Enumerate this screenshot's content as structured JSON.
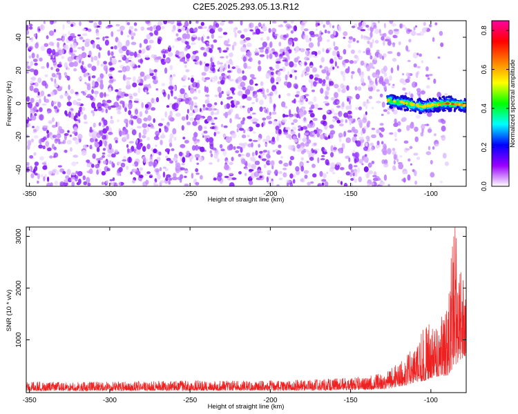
{
  "title": "C2E5.2025.293.05.13.R12",
  "chart_data": [
    {
      "type": "heatmap",
      "name": "spectrogram",
      "xlabel": "Height of straight line (km)",
      "ylabel": "Frequency (Hz)",
      "xlim": [
        -352,
        -78
      ],
      "ylim": [
        -50,
        50
      ],
      "xticks": [
        -350,
        -300,
        -250,
        -200,
        -150,
        -100
      ],
      "yticks": [
        -40,
        -20,
        0,
        20,
        40
      ],
      "noise_extent_km": [
        -352,
        -90
      ],
      "signal": {
        "start_km": -127,
        "end_km": -78,
        "center_freq_hz": [
          2,
          0,
          -2,
          -1,
          0,
          -1
        ],
        "center_height_km": [
          -127,
          -115,
          -105,
          -100,
          -90,
          -78
        ]
      },
      "colorbar": {
        "label": "Normalized spectral amplitude",
        "range": [
          0.0,
          0.85
        ],
        "ticks": [
          "0.0",
          "0.2",
          "0.4",
          "0.6",
          "0.8"
        ],
        "colors": [
          "#ffffff",
          "#9a00ff",
          "#0000ff",
          "#00ffff",
          "#00ff00",
          "#ffff00",
          "#ff8000",
          "#ff0000",
          "#ff00a0"
        ]
      }
    },
    {
      "type": "line",
      "name": "snr",
      "xlabel": "Height of straight line (km)",
      "ylabel": "SNR (10 * v/v)",
      "xlim": [
        -352,
        -78
      ],
      "ylim": [
        -20,
        3180
      ],
      "xticks": [
        -350,
        -300,
        -250,
        -200,
        -150,
        -100
      ],
      "yticks": [
        1000,
        2000,
        3000
      ],
      "color": "#ee2020",
      "envelope": {
        "x": [
          -352,
          -300,
          -250,
          -200,
          -170,
          -150,
          -135,
          -125,
          -120,
          -115,
          -110,
          -105,
          -100,
          -95,
          -90,
          -87,
          -85,
          -82,
          -78
        ],
        "upper": [
          190,
          190,
          215,
          220,
          240,
          270,
          320,
          450,
          560,
          720,
          900,
          1200,
          1400,
          1500,
          1700,
          2700,
          3180,
          2400,
          2000
        ],
        "lower": [
          15,
          15,
          20,
          20,
          20,
          30,
          40,
          60,
          100,
          120,
          180,
          200,
          250,
          300,
          300,
          400,
          500,
          600,
          700
        ]
      }
    }
  ]
}
